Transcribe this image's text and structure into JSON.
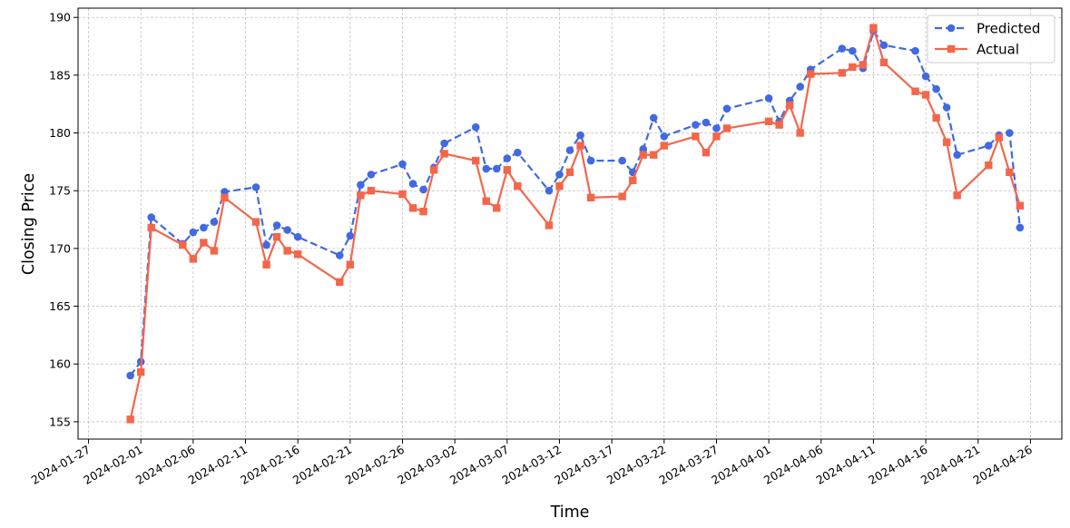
{
  "chart_data": {
    "type": "line",
    "title": "",
    "xlabel": "Time",
    "ylabel": "Closing Price",
    "grid": true,
    "legend_position": "top-right",
    "xlim": [
      "2024-01-26",
      "2024-04-29"
    ],
    "ylim": [
      153.5,
      190.8
    ],
    "x_ticks": [
      "2024-01-27",
      "2024-02-01",
      "2024-02-06",
      "2024-02-11",
      "2024-02-16",
      "2024-02-21",
      "2024-02-26",
      "2024-03-02",
      "2024-03-07",
      "2024-03-12",
      "2024-03-17",
      "2024-03-22",
      "2024-03-27",
      "2024-04-01",
      "2024-04-06",
      "2024-04-11",
      "2024-04-16",
      "2024-04-21",
      "2024-04-26"
    ],
    "y_ticks": [
      155,
      160,
      165,
      170,
      175,
      180,
      185,
      190
    ],
    "series": [
      {
        "name": "Predicted",
        "color": "#4169E1",
        "line_style": "dashed",
        "marker": "circle",
        "points": [
          [
            "2024-01-31",
            159.0
          ],
          [
            "2024-02-01",
            160.2
          ],
          [
            "2024-02-02",
            172.7
          ],
          [
            "2024-02-05",
            170.4
          ],
          [
            "2024-02-06",
            171.4
          ],
          [
            "2024-02-07",
            171.8
          ],
          [
            "2024-02-08",
            172.3
          ],
          [
            "2024-02-09",
            174.9
          ],
          [
            "2024-02-12",
            175.3
          ],
          [
            "2024-02-13",
            170.3
          ],
          [
            "2024-02-14",
            172.0
          ],
          [
            "2024-02-15",
            171.6
          ],
          [
            "2024-02-16",
            171.0
          ],
          [
            "2024-02-20",
            169.4
          ],
          [
            "2024-02-21",
            171.1
          ],
          [
            "2024-02-22",
            175.5
          ],
          [
            "2024-02-23",
            176.4
          ],
          [
            "2024-02-26",
            177.3
          ],
          [
            "2024-02-27",
            175.6
          ],
          [
            "2024-02-28",
            175.1
          ],
          [
            "2024-02-29",
            177.0
          ],
          [
            "2024-03-01",
            179.1
          ],
          [
            "2024-03-04",
            180.5
          ],
          [
            "2024-03-05",
            176.9
          ],
          [
            "2024-03-06",
            176.9
          ],
          [
            "2024-03-07",
            177.8
          ],
          [
            "2024-03-08",
            178.3
          ],
          [
            "2024-03-11",
            175.0
          ],
          [
            "2024-03-12",
            176.4
          ],
          [
            "2024-03-13",
            178.5
          ],
          [
            "2024-03-14",
            179.8
          ],
          [
            "2024-03-15",
            177.6
          ],
          [
            "2024-03-18",
            177.6
          ],
          [
            "2024-03-19",
            176.6
          ],
          [
            "2024-03-20",
            178.6
          ],
          [
            "2024-03-21",
            181.3
          ],
          [
            "2024-03-22",
            179.7
          ],
          [
            "2024-03-25",
            180.7
          ],
          [
            "2024-03-26",
            180.9
          ],
          [
            "2024-03-27",
            180.4
          ],
          [
            "2024-03-28",
            182.1
          ],
          [
            "2024-04-01",
            183.0
          ],
          [
            "2024-04-02",
            181.0
          ],
          [
            "2024-04-03",
            182.8
          ],
          [
            "2024-04-04",
            184.0
          ],
          [
            "2024-04-05",
            185.5
          ],
          [
            "2024-04-08",
            187.3
          ],
          [
            "2024-04-09",
            187.1
          ],
          [
            "2024-04-10",
            185.6
          ],
          [
            "2024-04-11",
            188.8
          ],
          [
            "2024-04-12",
            187.6
          ],
          [
            "2024-04-15",
            187.1
          ],
          [
            "2024-04-16",
            184.9
          ],
          [
            "2024-04-17",
            183.8
          ],
          [
            "2024-04-18",
            182.2
          ],
          [
            "2024-04-19",
            178.1
          ],
          [
            "2024-04-22",
            178.9
          ],
          [
            "2024-04-23",
            179.8
          ],
          [
            "2024-04-24",
            180.0
          ],
          [
            "2024-04-25",
            171.8
          ]
        ]
      },
      {
        "name": "Actual",
        "color": "#F4664A",
        "line_style": "solid",
        "marker": "square",
        "points": [
          [
            "2024-01-31",
            155.2
          ],
          [
            "2024-02-01",
            159.3
          ],
          [
            "2024-02-02",
            171.8
          ],
          [
            "2024-02-05",
            170.3
          ],
          [
            "2024-02-06",
            169.1
          ],
          [
            "2024-02-07",
            170.5
          ],
          [
            "2024-02-08",
            169.8
          ],
          [
            "2024-02-09",
            174.4
          ],
          [
            "2024-02-12",
            172.3
          ],
          [
            "2024-02-13",
            168.6
          ],
          [
            "2024-02-14",
            171.0
          ],
          [
            "2024-02-15",
            169.8
          ],
          [
            "2024-02-16",
            169.5
          ],
          [
            "2024-02-20",
            167.1
          ],
          [
            "2024-02-21",
            168.6
          ],
          [
            "2024-02-22",
            174.6
          ],
          [
            "2024-02-23",
            175.0
          ],
          [
            "2024-02-26",
            174.7
          ],
          [
            "2024-02-27",
            173.5
          ],
          [
            "2024-02-28",
            173.2
          ],
          [
            "2024-02-29",
            176.8
          ],
          [
            "2024-03-01",
            178.2
          ],
          [
            "2024-03-04",
            177.6
          ],
          [
            "2024-03-05",
            174.1
          ],
          [
            "2024-03-06",
            173.5
          ],
          [
            "2024-03-07",
            176.8
          ],
          [
            "2024-03-08",
            175.4
          ],
          [
            "2024-03-11",
            172.0
          ],
          [
            "2024-03-12",
            175.4
          ],
          [
            "2024-03-13",
            176.6
          ],
          [
            "2024-03-14",
            178.9
          ],
          [
            "2024-03-15",
            174.4
          ],
          [
            "2024-03-18",
            174.5
          ],
          [
            "2024-03-19",
            175.9
          ],
          [
            "2024-03-20",
            178.1
          ],
          [
            "2024-03-21",
            178.1
          ],
          [
            "2024-03-22",
            178.9
          ],
          [
            "2024-03-25",
            179.7
          ],
          [
            "2024-03-26",
            178.3
          ],
          [
            "2024-03-27",
            179.7
          ],
          [
            "2024-03-28",
            180.4
          ],
          [
            "2024-04-01",
            181.0
          ],
          [
            "2024-04-02",
            180.7
          ],
          [
            "2024-04-03",
            182.4
          ],
          [
            "2024-04-04",
            180.0
          ],
          [
            "2024-04-05",
            185.1
          ],
          [
            "2024-04-08",
            185.2
          ],
          [
            "2024-04-09",
            185.7
          ],
          [
            "2024-04-10",
            185.9
          ],
          [
            "2024-04-11",
            189.1
          ],
          [
            "2024-04-12",
            186.1
          ],
          [
            "2024-04-15",
            183.6
          ],
          [
            "2024-04-16",
            183.3
          ],
          [
            "2024-04-17",
            181.3
          ],
          [
            "2024-04-18",
            179.2
          ],
          [
            "2024-04-19",
            174.6
          ],
          [
            "2024-04-22",
            177.2
          ],
          [
            "2024-04-23",
            179.6
          ],
          [
            "2024-04-24",
            176.6
          ],
          [
            "2024-04-25",
            173.7
          ]
        ]
      }
    ]
  }
}
